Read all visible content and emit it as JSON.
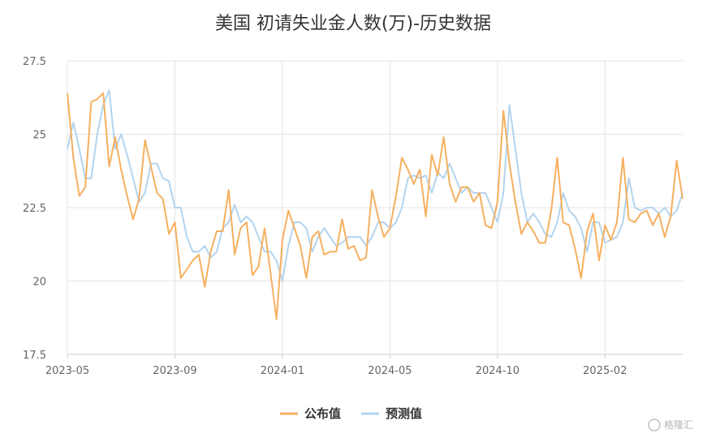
{
  "chart_data": {
    "type": "line",
    "title": "美国 初请失业金人数(万)-历史数据",
    "xlabel": "",
    "ylabel": "",
    "ylim": [
      17.5,
      27.5
    ],
    "yticks": [
      17.5,
      20,
      22.5,
      25,
      27.5
    ],
    "ytick_labels": [
      "17.5",
      "20",
      "22.5",
      "25",
      "27.5"
    ],
    "xtick_labels": [
      "2023-05",
      "2023-09",
      "2024-01",
      "2024-05",
      "2024-10",
      "2025-02"
    ],
    "xtick_index": [
      0,
      18,
      36,
      54,
      72,
      90
    ],
    "grid": true,
    "legend_position": "bottom-center",
    "series": [
      {
        "name": "公布值",
        "color": "#f5b060",
        "values": [
          26.4,
          24.2,
          22.9,
          23.2,
          26.1,
          26.2,
          26.4,
          23.9,
          24.9,
          23.8,
          22.9,
          22.1,
          22.8,
          24.8,
          23.9,
          23.0,
          22.8,
          21.6,
          22.0,
          20.1,
          20.4,
          20.7,
          20.9,
          19.8,
          21.0,
          21.7,
          21.7,
          23.1,
          20.9,
          21.8,
          22.0,
          20.2,
          20.5,
          21.8,
          20.3,
          18.7,
          21.4,
          22.4,
          21.8,
          21.2,
          20.1,
          21.5,
          21.7,
          20.9,
          21.0,
          21.0,
          22.1,
          21.1,
          21.2,
          20.7,
          20.8,
          23.1,
          22.2,
          21.5,
          21.8,
          22.9,
          24.2,
          23.8,
          23.3,
          23.8,
          22.2,
          24.3,
          23.6,
          24.9,
          23.3,
          22.7,
          23.2,
          23.2,
          22.7,
          23.0,
          21.9,
          21.8,
          22.7,
          25.8,
          24.0,
          22.7,
          21.6,
          22.0,
          21.7,
          21.3,
          21.3,
          22.4,
          24.2,
          22.0,
          21.9,
          21.1,
          20.1,
          21.7,
          22.3,
          20.7,
          21.9,
          21.4,
          22.0,
          24.2,
          22.1,
          22.0,
          22.3,
          22.4,
          21.9,
          22.3,
          21.5,
          22.2,
          24.1,
          22.8
        ]
      },
      {
        "name": "预测值",
        "color": "#b3d4ee",
        "values": [
          24.5,
          25.4,
          24.5,
          23.5,
          23.5,
          25.0,
          26.0,
          26.5,
          24.5,
          25.0,
          24.3,
          23.5,
          22.7,
          23.0,
          24.0,
          24.0,
          23.5,
          23.4,
          22.5,
          22.5,
          21.5,
          21.0,
          21.0,
          21.2,
          20.8,
          21.0,
          21.8,
          22.0,
          22.6,
          22.0,
          22.2,
          22.0,
          21.5,
          21.0,
          21.0,
          20.7,
          20.0,
          21.2,
          22.0,
          22.0,
          21.8,
          21.0,
          21.5,
          21.8,
          21.5,
          21.2,
          21.3,
          21.5,
          21.5,
          21.5,
          21.2,
          21.5,
          22.0,
          22.0,
          21.8,
          22.0,
          22.5,
          23.5,
          23.6,
          23.5,
          23.6,
          23.0,
          23.7,
          23.5,
          24.0,
          23.5,
          23.0,
          23.2,
          23.0,
          23.0,
          23.0,
          22.5,
          22.0,
          23.0,
          26.0,
          24.5,
          23.0,
          22.0,
          22.3,
          22.0,
          21.6,
          21.5,
          22.0,
          23.0,
          22.4,
          22.2,
          21.8,
          21.0,
          22.0,
          22.0,
          21.3,
          21.4,
          21.5,
          22.0,
          23.5,
          22.5,
          22.4,
          22.5,
          22.5,
          22.3,
          22.5,
          22.2,
          22.4,
          23.0
        ]
      }
    ]
  },
  "watermark": "格隆汇"
}
